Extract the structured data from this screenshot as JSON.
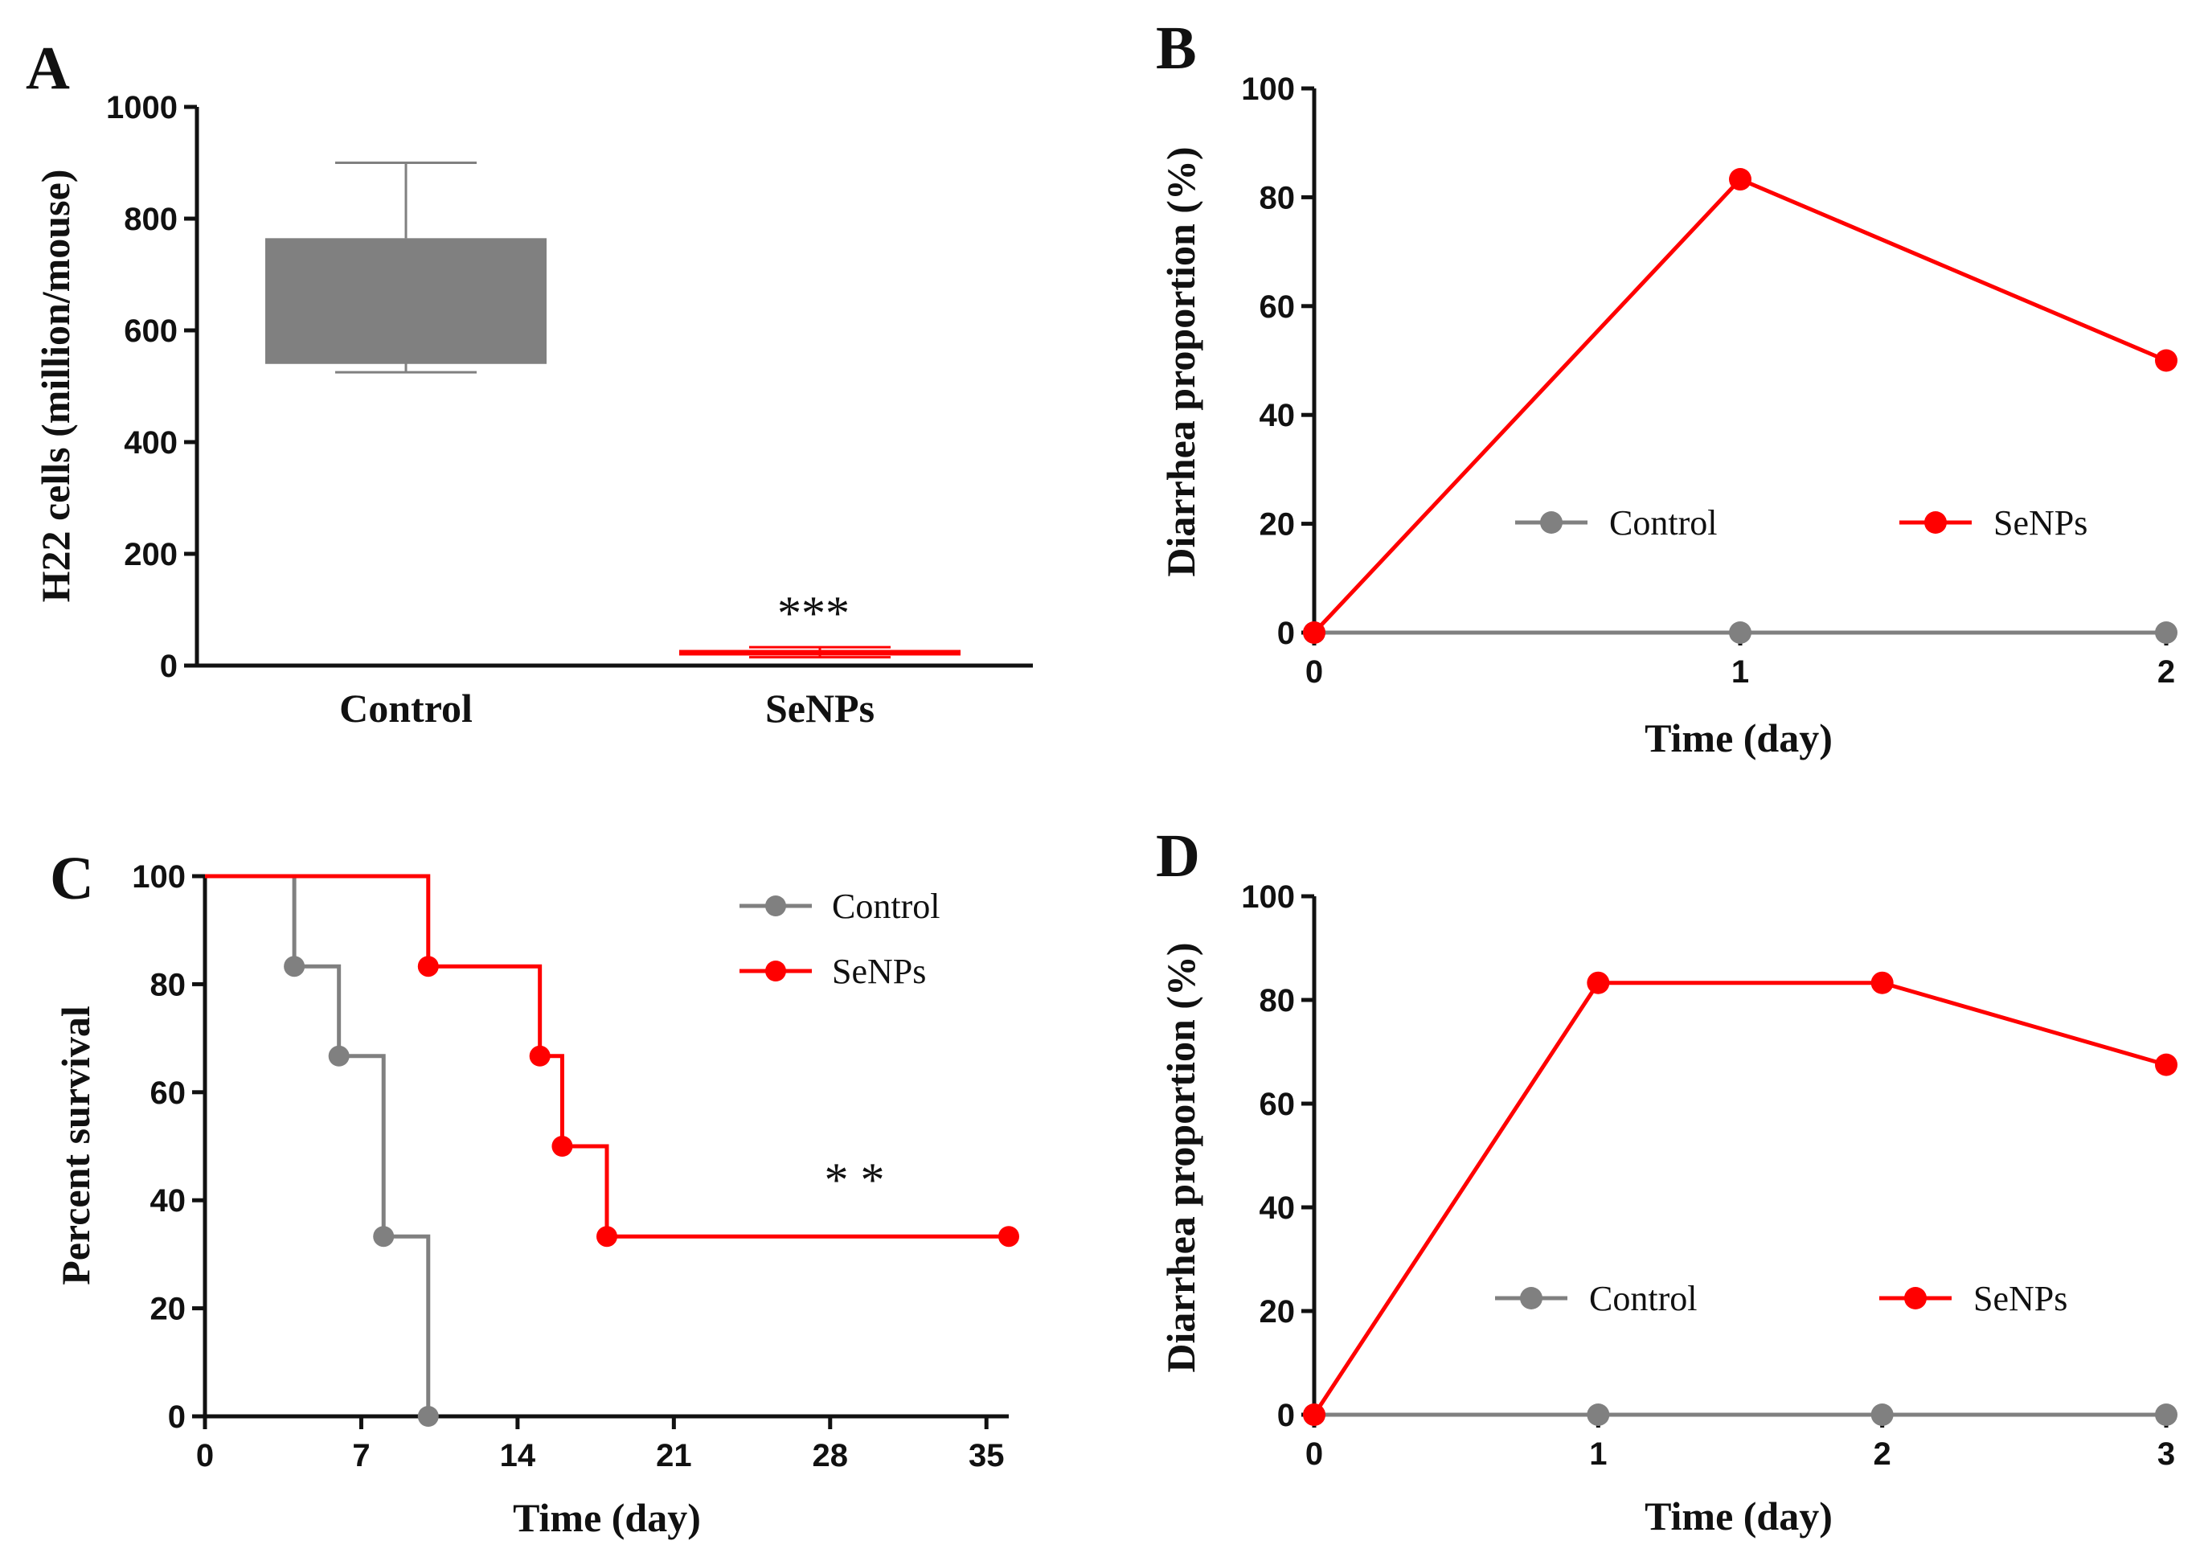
{
  "colors": {
    "control": "#808080",
    "senps": "#ff0000",
    "axis": "#111111"
  },
  "chart_data": [
    {
      "panel": "A",
      "type": "box",
      "title": "",
      "xlabel": "",
      "ylabel": "H22 cells (million/mouse)",
      "ylim": [
        0,
        1000
      ],
      "yticks": [
        "0",
        "200",
        "400",
        "600",
        "800",
        "1000"
      ],
      "categories": [
        "Control",
        "SeNPs"
      ],
      "boxes": [
        {
          "name": "Control",
          "min": 525,
          "q1": 542,
          "median": 542,
          "q3": 765,
          "max": 900
        },
        {
          "name": "SeNPs",
          "min": 15,
          "q1": 18,
          "median": 22,
          "q3": 28,
          "max": 33
        }
      ],
      "annotation": "***"
    },
    {
      "panel": "B",
      "type": "line",
      "xlabel": "Time (day)",
      "ylabel": "Diarrhea proportion (%)",
      "xlim": [
        0,
        2
      ],
      "ylim": [
        0,
        100
      ],
      "xticks": [
        "0",
        "1",
        "2"
      ],
      "yticks": [
        "0",
        "20",
        "40",
        "60",
        "80",
        "100"
      ],
      "x": [
        0,
        1,
        2
      ],
      "series": [
        {
          "name": "Control",
          "values": [
            0,
            0,
            0
          ]
        },
        {
          "name": "SeNPs",
          "values": [
            0,
            83.3,
            50
          ]
        }
      ],
      "legend": [
        "Control",
        "SeNPs"
      ]
    },
    {
      "panel": "C",
      "type": "step",
      "xlabel": "Time (day)",
      "ylabel": "Percent survival",
      "xlim": [
        0,
        36
      ],
      "ylim": [
        0,
        100
      ],
      "xticks": [
        "0",
        "7",
        "14",
        "21",
        "28",
        "35"
      ],
      "yticks": [
        "0",
        "20",
        "40",
        "60",
        "80",
        "100"
      ],
      "series": [
        {
          "name": "Control",
          "x": [
            0,
            4,
            6,
            8,
            10
          ],
          "values": [
            100,
            83.3,
            66.7,
            33.3,
            0
          ]
        },
        {
          "name": "SeNPs",
          "x": [
            0,
            10,
            15,
            16,
            18,
            36
          ],
          "values": [
            100,
            83.3,
            66.7,
            50,
            33.3,
            33.3
          ]
        }
      ],
      "legend": [
        "Control",
        "SeNPs"
      ],
      "annotation": "* *"
    },
    {
      "panel": "D",
      "type": "line",
      "xlabel": "Time (day)",
      "ylabel": "Diarrhea proportion (%)",
      "xlim": [
        0,
        3
      ],
      "ylim": [
        0,
        100
      ],
      "xticks": [
        "0",
        "1",
        "2",
        "3"
      ],
      "yticks": [
        "0",
        "20",
        "40",
        "60",
        "80",
        "100"
      ],
      "x": [
        0,
        1,
        2,
        3
      ],
      "series": [
        {
          "name": "Control",
          "values": [
            0,
            0,
            0,
            0
          ]
        },
        {
          "name": "SeNPs",
          "values": [
            0,
            83.3,
            83.3,
            67.5
          ]
        }
      ],
      "legend": [
        "Control",
        "SeNPs"
      ]
    }
  ]
}
